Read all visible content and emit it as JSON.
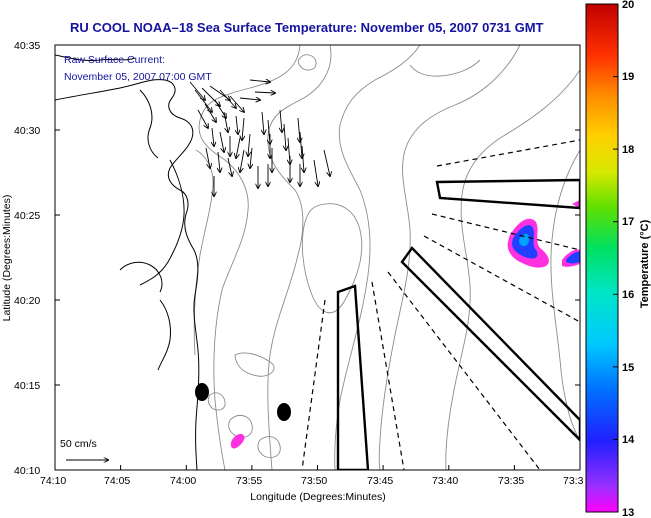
{
  "title": "RU COOL  NOAA–18  Sea Surface Temperature:  November 05, 2007 0731 GMT",
  "subtitle_line1": "Raw Surface Current:",
  "subtitle_line2": "November 05, 2007 07:00 GMT",
  "x_axis": {
    "label": "Longitude (Degrees:Minutes)",
    "ticks": [
      "74:10",
      "74:05",
      "74:00",
      "73:55",
      "73:50",
      "73:45",
      "73:40",
      "73:35",
      "73:3"
    ]
  },
  "y_axis": {
    "label": "Latitude (Degrees:Minutes)",
    "ticks": [
      "40:35",
      "40:30",
      "40:25",
      "40:20",
      "40:15",
      "40:10"
    ]
  },
  "colorbar": {
    "label": "Temperature (°C)",
    "ticks": [
      "20",
      "19",
      "18",
      "17",
      "16",
      "15",
      "14",
      "13"
    ],
    "min": 13,
    "max": 20
  },
  "scale_arrow_label": "50 cm/s",
  "colors": {
    "title": "#1414a0",
    "land_outline": "#000000",
    "bathymetry": "#8c8c8c",
    "warm_patch": "#2040ff",
    "cold_patch": "#ff30e0"
  }
}
